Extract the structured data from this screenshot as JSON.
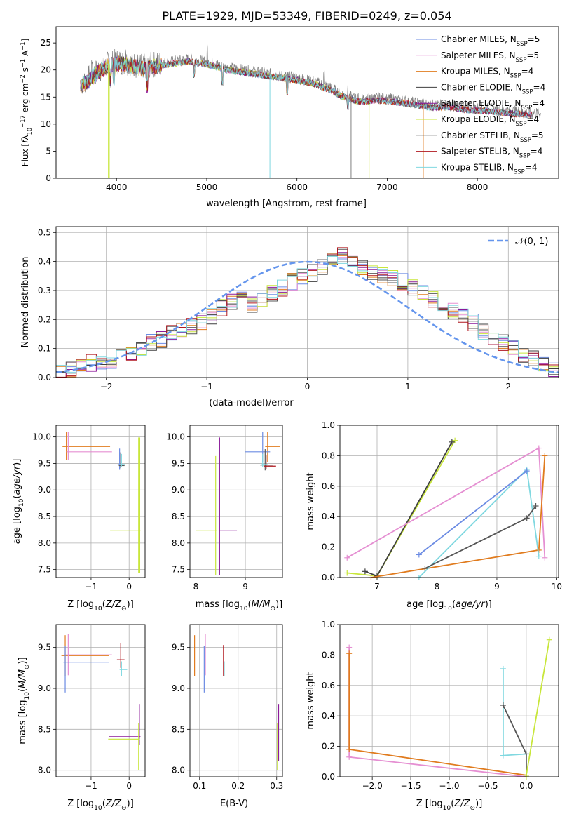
{
  "title": "PLATE=1929, MJD=53349, FIBERID=0249, z=0.054",
  "colors": {
    "Chabrier MILES": "#6b8be3",
    "Salpeter MILES": "#e58fd2",
    "Kroupa MILES": "#e07b1e",
    "Chabrier ELODIE": "#3f3f3f",
    "Salpeter ELODIE": "#8b1a9a",
    "Kroupa ELODIE": "#c8e63a",
    "Chabrier STELIB": "#555555",
    "Salpeter STELIB": "#b0171e",
    "Kroupa STELIB": "#80d8e0",
    "normal_curve": "#6495ed",
    "grid": "#b0b0b0"
  },
  "panels": {
    "spectrum": {
      "xlabel": "wavelength [Angstrom, rest frame]",
      "ylabel_parts": [
        "Flux [",
        "f",
        "λ",
        "10",
        "−17",
        " erg cm",
        "−2",
        " s",
        "−1",
        " A",
        "−1",
        "]"
      ],
      "legend": [
        {
          "name": "Chabrier MILES",
          "suffix": "5"
        },
        {
          "name": "Salpeter MILES",
          "suffix": "5"
        },
        {
          "name": "Kroupa MILES",
          "suffix": "4"
        },
        {
          "name": "Chabrier ELODIE",
          "suffix": "4"
        },
        {
          "name": "Salpeter ELODIE",
          "suffix": "4"
        },
        {
          "name": "Kroupa ELODIE",
          "suffix": "4"
        },
        {
          "name": "Chabrier STELIB",
          "suffix": "5"
        },
        {
          "name": "Salpeter STELIB",
          "suffix": "4"
        },
        {
          "name": "Kroupa STELIB",
          "suffix": "4"
        }
      ],
      "legend_label_prefix": "N",
      "legend_label_sub": "SSP",
      "legend_label_eq": "="
    },
    "histogram": {
      "xlabel": "(data-model)/error",
      "ylabel": "Normed distribution",
      "legend_label": "𝒩(0, 1)"
    },
    "age_Z": {
      "xlabel_parts": [
        "Z [log",
        "10",
        "(",
        "Z/Z",
        "⊙",
        ")]"
      ],
      "ylabel_parts": [
        "age  [log",
        "10",
        "(",
        "age/yr",
        ")]"
      ]
    },
    "age_mass": {
      "xlabel_parts": [
        "mass [log",
        "10",
        "(",
        "M/M",
        "⊙",
        ")]"
      ]
    },
    "weight_age": {
      "xlabel_parts": [
        "age  [log",
        "10",
        "(",
        "age/yr",
        ")]"
      ],
      "ylabel": "mass weight"
    },
    "mass_Z": {
      "xlabel_parts": [
        "Z [log",
        "10",
        "(",
        "Z/Z",
        "⊙",
        ")]"
      ],
      "ylabel_parts": [
        "mass [log",
        "10",
        "(",
        "M/M",
        "⊙",
        ")]"
      ]
    },
    "mass_ebv": {
      "xlabel": "E(B-V)"
    },
    "weight_Z": {
      "xlabel_parts": [
        "Z [log",
        "10",
        "(",
        "Z/Z",
        "⊙",
        ")]"
      ],
      "ylabel": "mass weight"
    }
  },
  "chart_data": [
    {
      "type": "line",
      "id": "spectrum",
      "xlim": [
        3330,
        8900
      ],
      "ylim": [
        0,
        28
      ],
      "xticks": [
        4000,
        5000,
        6000,
        7000,
        8000
      ],
      "yticks": [
        0,
        5,
        10,
        15,
        20,
        25
      ],
      "grid": false,
      "legend_position": "top-right",
      "continuum": [
        [
          3600,
          17.5
        ],
        [
          3700,
          18.5
        ],
        [
          3800,
          20
        ],
        [
          3900,
          21
        ],
        [
          4000,
          21.5
        ],
        [
          4100,
          21.5
        ],
        [
          4200,
          21
        ],
        [
          4300,
          20.5
        ],
        [
          4400,
          21
        ],
        [
          4600,
          21.5
        ],
        [
          4800,
          22
        ],
        [
          5000,
          21.5
        ],
        [
          5200,
          20.5
        ],
        [
          5400,
          20
        ],
        [
          5600,
          19.5
        ],
        [
          5800,
          19
        ],
        [
          6000,
          18.5
        ],
        [
          6200,
          17.8
        ],
        [
          6400,
          16.5
        ],
        [
          6500,
          15.5
        ],
        [
          6700,
          14.5
        ],
        [
          6900,
          14.8
        ],
        [
          7100,
          14.5
        ],
        [
          7300,
          14
        ],
        [
          7500,
          13.5
        ],
        [
          7700,
          13.5
        ],
        [
          7900,
          13
        ],
        [
          8100,
          12.8
        ],
        [
          8300,
          12.5
        ],
        [
          8500,
          12.2
        ],
        [
          8700,
          12
        ]
      ],
      "absorption_dips": [
        [
          3934,
          3
        ],
        [
          3969,
          3
        ],
        [
          4340,
          4
        ],
        [
          4861,
          3
        ],
        [
          5175,
          3
        ],
        [
          5890,
          3
        ],
        [
          6563,
          2
        ]
      ],
      "emission_spikes": [
        [
          3727,
          4
        ],
        [
          4102,
          3
        ],
        [
          4861,
          2.5
        ],
        [
          5007,
          2.5
        ],
        [
          6300,
          2
        ],
        [
          6563,
          3
        ]
      ],
      "vertical_artifacts": [
        [
          3910,
          0
        ],
        [
          3920,
          0
        ],
        [
          5700,
          0
        ],
        [
          6600,
          0
        ],
        [
          6800,
          0
        ],
        [
          7400,
          0
        ],
        [
          7420,
          0
        ]
      ]
    },
    {
      "type": "bar",
      "id": "histogram",
      "xlim": [
        -2.5,
        2.5
      ],
      "ylim": [
        0,
        0.52
      ],
      "xticks": [
        -2,
        -1,
        0,
        1,
        2
      ],
      "yticks": [
        0.0,
        0.1,
        0.2,
        0.3,
        0.4,
        0.5
      ],
      "grid": true,
      "legend_position": "top-right",
      "bin_width": 0.1,
      "bin_start": -2.5,
      "series_values": [
        0.02,
        0.03,
        0.04,
        0.05,
        0.05,
        0.06,
        0.08,
        0.08,
        0.1,
        0.12,
        0.13,
        0.15,
        0.16,
        0.18,
        0.19,
        0.21,
        0.24,
        0.26,
        0.28,
        0.25,
        0.27,
        0.29,
        0.31,
        0.33,
        0.35,
        0.36,
        0.38,
        0.4,
        0.42,
        0.39,
        0.38,
        0.36,
        0.35,
        0.34,
        0.33,
        0.31,
        0.29,
        0.27,
        0.25,
        0.23,
        0.21,
        0.19,
        0.16,
        0.14,
        0.12,
        0.1,
        0.08,
        0.07,
        0.05,
        0.03
      ]
    },
    {
      "type": "scatter",
      "id": "age_Z",
      "xlim": [
        -1.92,
        0.42
      ],
      "ylim": [
        7.35,
        10.22
      ],
      "xticks": [
        -1,
        0
      ],
      "yticks": [
        7.5,
        8.0,
        8.5,
        9.0,
        9.5,
        10.0
      ],
      "grid": true
    },
    {
      "type": "scatter",
      "id": "age_mass",
      "xlim": [
        7.88,
        9.75
      ],
      "ylim": [
        7.35,
        10.22
      ],
      "xticks": [
        8,
        9
      ],
      "yticks": [
        7.5,
        8.0,
        8.5,
        9.0,
        9.5,
        10.0
      ],
      "grid": true
    },
    {
      "type": "line",
      "id": "weight_age",
      "xlim": [
        6.38,
        10.03
      ],
      "ylim": [
        0,
        1
      ],
      "xticks": [
        7,
        8,
        9,
        10
      ],
      "yticks": [
        0.0,
        0.2,
        0.4,
        0.6,
        0.8,
        1.0
      ],
      "grid": true,
      "series": [
        {
          "name": "Kroupa ELODIE",
          "x": [
            6.5,
            7.0,
            8.3
          ],
          "y": [
            0.03,
            0.01,
            0.9
          ]
        },
        {
          "name": "Chabrier ELODIE",
          "x": [
            6.8,
            7.0,
            8.25
          ],
          "y": [
            0.04,
            0.01,
            0.89
          ]
        },
        {
          "name": "Salpeter MILES",
          "x": [
            6.5,
            9.7,
            9.8
          ],
          "y": [
            0.13,
            0.85,
            0.13
          ]
        },
        {
          "name": "Kroupa MILES",
          "x": [
            6.9,
            9.7,
            9.8
          ],
          "y": [
            0.0,
            0.18,
            0.8
          ]
        },
        {
          "name": "Kroupa STELIB",
          "x": [
            7.7,
            9.5,
            9.7
          ],
          "y": [
            0.0,
            0.71,
            0.14
          ]
        },
        {
          "name": "Chabrier STELIB",
          "x": [
            7.8,
            9.5,
            9.65
          ],
          "y": [
            0.06,
            0.39,
            0.47
          ]
        },
        {
          "name": "Chabrier MILES",
          "x": [
            7.7,
            9.5
          ],
          "y": [
            0.15,
            0.7
          ]
        }
      ]
    },
    {
      "type": "scatter",
      "id": "mass_Z",
      "xlim": [
        -1.92,
        0.42
      ],
      "ylim": [
        7.92,
        9.78
      ],
      "xticks": [
        -1,
        0
      ],
      "yticks": [
        8.0,
        8.5,
        9.0,
        9.5
      ],
      "grid": true
    },
    {
      "type": "scatter",
      "id": "mass_ebv",
      "xlim": [
        0.075,
        0.315
      ],
      "ylim": [
        7.92,
        9.78
      ],
      "xticks": [
        0.1,
        0.2,
        0.3
      ],
      "yticks": [
        8.0,
        8.5,
        9.0,
        9.5
      ],
      "grid": true
    },
    {
      "type": "line",
      "id": "weight_Z",
      "xlim": [
        -2.42,
        0.42
      ],
      "ylim": [
        0,
        1
      ],
      "xticks": [
        -2.0,
        -1.5,
        -1.0,
        -0.5,
        0.0
      ],
      "yticks": [
        0.0,
        0.2,
        0.4,
        0.6,
        0.8,
        1.0
      ],
      "grid": true,
      "series": [
        {
          "name": "Salpeter MILES",
          "x": [
            -2.3,
            -2.3,
            0.0
          ],
          "y": [
            0.85,
            0.13,
            0.0
          ]
        },
        {
          "name": "Kroupa MILES",
          "x": [
            -2.3,
            -2.3,
            0.0
          ],
          "y": [
            0.81,
            0.18,
            0.01
          ]
        },
        {
          "name": "Kroupa STELIB",
          "x": [
            -0.3,
            -0.3,
            0.0
          ],
          "y": [
            0.71,
            0.14,
            0.15
          ]
        },
        {
          "name": "Chabrier STELIB",
          "x": [
            -0.3,
            0.0,
            0.0
          ],
          "y": [
            0.47,
            0.15,
            0.0
          ]
        },
        {
          "name": "Kroupa ELODIE",
          "x": [
            0.3,
            0.0,
            0.0
          ],
          "y": [
            0.9,
            0.01,
            0.0
          ]
        }
      ]
    }
  ]
}
